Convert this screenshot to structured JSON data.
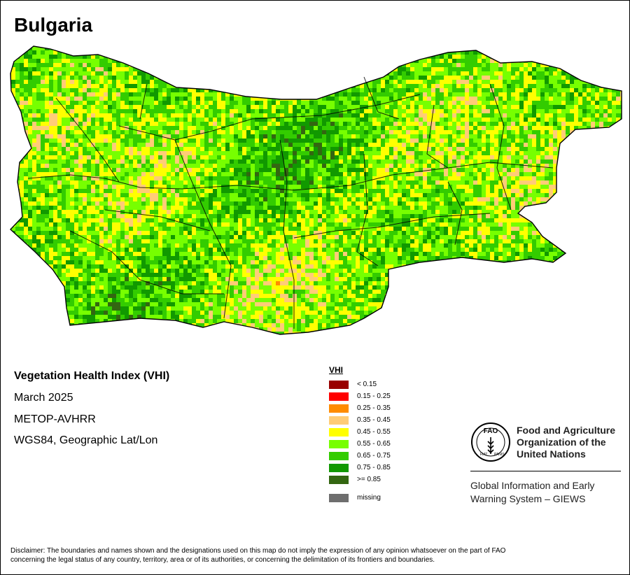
{
  "map": {
    "title": "Bulgaria"
  },
  "info": {
    "index_name": "Vegetation Health Index (VHI)",
    "date": "March 2025",
    "sensor": "METOP-AVHRR",
    "projection": "WGS84, Geographic Lat/Lon"
  },
  "legend": {
    "title": "VHI",
    "classes": [
      {
        "label": "< 0.15",
        "color": "#990000"
      },
      {
        "label": "0.15 - 0.25",
        "color": "#ff0000"
      },
      {
        "label": "0.25 - 0.35",
        "color": "#ff8c00"
      },
      {
        "label": "0.35 - 0.45",
        "color": "#ffcc77"
      },
      {
        "label": "0.45 - 0.55",
        "color": "#ffff00"
      },
      {
        "label": "0.55 - 0.65",
        "color": "#77ff00"
      },
      {
        "label": "0.65 - 0.75",
        "color": "#33cc00"
      },
      {
        "label": "0.75 - 0.85",
        "color": "#119900"
      },
      {
        "label": ">= 0.85",
        "color": "#336611"
      }
    ],
    "missing": {
      "label": "missing",
      "color": "#6e6e6e"
    }
  },
  "fao": {
    "line1": "Food and Agriculture",
    "line2": "Organization of the",
    "line3": "United Nations",
    "logo_text": "FAO",
    "motto_left": "FIAT",
    "motto_right": "PANIS"
  },
  "giews": {
    "line1": "Global Information and Early",
    "line2": "Warning System – GIEWS"
  },
  "disclaimer": {
    "line1": "Disclaimer: The boundaries and names shown and the designations used on this map do not imply the expression of any opinion whatsoever on the part of FAO",
    "line2": "concerning the legal status of any country, territory, area or of its authorities, or concerning the delimitation of its frontiers and boundaries."
  }
}
